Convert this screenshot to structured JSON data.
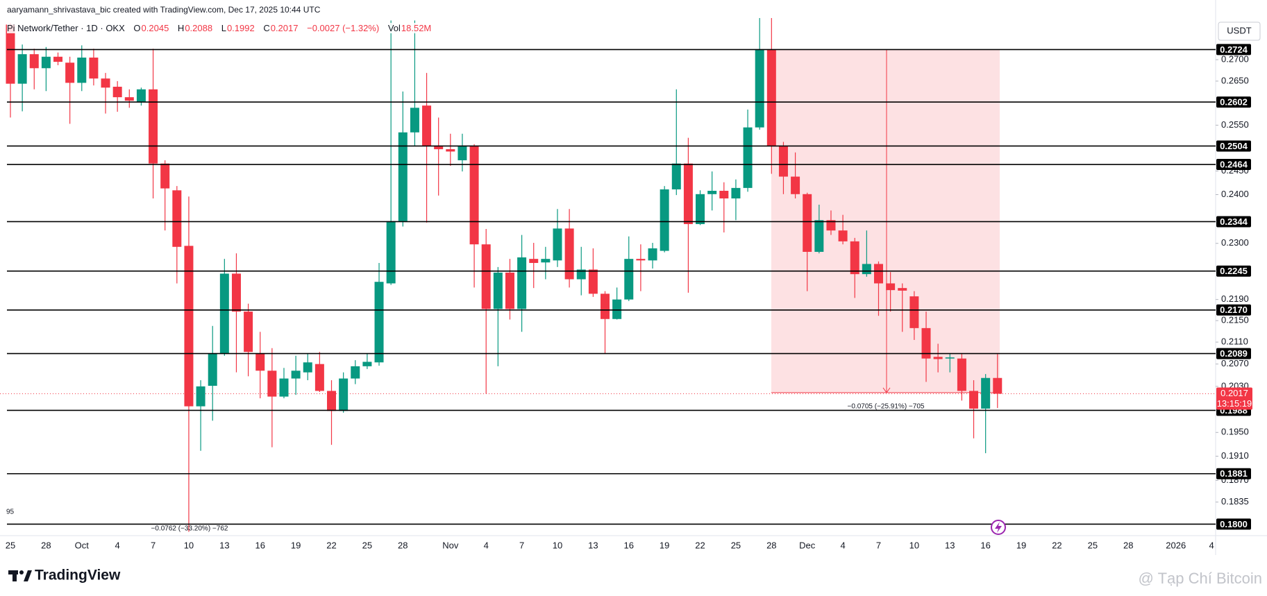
{
  "header": {
    "credit": "aaryamann_shrivastava_bic created with TradingView.com, Dec 17, 2025 10:44 UTC"
  },
  "chart_data": {
    "type": "candlestick",
    "legend": {
      "symbol": "Pi Network/Tether · 1D · OKX",
      "o_label": "O",
      "o": 0.2045,
      "h_label": "H",
      "h": 0.2088,
      "l_label": "L",
      "l": 0.1992,
      "c_label": "C",
      "c": 0.2017,
      "change": "−0.0027 (−1.32%)",
      "vol_label": "Vol",
      "vol": "18.52M"
    },
    "currency": "USDT",
    "categories": [
      "25",
      null,
      null,
      "28",
      null,
      null,
      "Oct",
      null,
      null,
      "4",
      null,
      null,
      "7",
      null,
      null,
      "10",
      null,
      null,
      "13",
      null,
      null,
      "16",
      null,
      null,
      "19",
      null,
      null,
      "22",
      null,
      null,
      "25",
      null,
      null,
      "28",
      null,
      null,
      null,
      "Nov",
      null,
      null,
      "4",
      null,
      null,
      "7",
      null,
      null,
      "10",
      null,
      null,
      "13",
      null,
      null,
      "16",
      null,
      null,
      "19",
      null,
      null,
      "22",
      null,
      null,
      "25",
      null,
      null,
      "28",
      null,
      null,
      "Dec",
      null,
      null,
      "4",
      null,
      null,
      "7",
      null,
      null,
      "10",
      null,
      null,
      "13",
      null,
      null,
      "16",
      null,
      null,
      "19",
      null,
      null,
      "22",
      null,
      null,
      "25",
      null,
      null,
      "28",
      null,
      null,
      null,
      "2026",
      null,
      null,
      "4"
    ],
    "open": [
      0.2784,
      0.2644,
      0.2713,
      0.268,
      0.2707,
      0.2693,
      0.2646,
      0.2705,
      0.2656,
      0.2637,
      0.2613,
      0.2603,
      0.2631,
      0.2466,
      0.2409,
      0.2295,
      0.1995,
      0.2031,
      0.2089,
      0.224,
      0.2167,
      0.2089,
      0.2058,
      0.2012,
      0.2044,
      0.2055,
      0.207,
      0.2022,
      0.1987,
      0.2044,
      0.2066,
      0.2073,
      0.2221,
      0.2345,
      0.2534,
      0.2594,
      0.2504,
      0.2497,
      0.2473,
      0.2504,
      0.2298,
      0.2172,
      0.2242,
      0.2172,
      0.2269,
      0.2262,
      0.2266,
      0.233,
      0.2229,
      0.2248,
      0.2201,
      0.2153,
      0.219,
      0.2269,
      0.2266,
      0.2285,
      0.2411,
      0.2466,
      0.2339,
      0.2401,
      0.2408,
      0.2392,
      0.2414,
      0.2545,
      0.2724,
      0.2504,
      0.2438,
      0.2401,
      0.2283,
      0.2347,
      0.2326,
      0.2304,
      0.2239,
      0.2259,
      0.2221,
      0.2212,
      0.2196,
      0.2136,
      0.2083,
      0.208,
      0.208,
      0.2022,
      0.1991,
      0.2045,
      null,
      null,
      null,
      null,
      null,
      null,
      null,
      null,
      null,
      null,
      null,
      null,
      null,
      null,
      null,
      null,
      null,
      null
    ],
    "high": [
      0.2788,
      0.2736,
      0.2726,
      0.273,
      0.2717,
      0.2707,
      0.2734,
      0.2726,
      0.2669,
      0.265,
      0.2631,
      0.2635,
      0.2726,
      0.2473,
      0.2418,
      0.2396,
      0.2041,
      0.214,
      0.2269,
      0.228,
      0.2182,
      0.2129,
      0.2099,
      0.2063,
      0.2085,
      0.2089,
      0.2092,
      0.2041,
      0.2055,
      0.2077,
      0.2089,
      0.2261,
      0.2794,
      0.2626,
      0.2794,
      0.2669,
      0.2567,
      0.2531,
      0.2531,
      0.2508,
      0.2329,
      0.2253,
      0.2269,
      0.2317,
      0.2301,
      0.2293,
      0.237,
      0.237,
      0.2293,
      0.229,
      0.2206,
      0.2213,
      0.2314,
      0.2298,
      0.2301,
      0.2418,
      0.2631,
      0.2522,
      0.2409,
      0.2449,
      0.2426,
      0.2432,
      0.2585,
      0.2804,
      0.2804,
      0.2513,
      0.249,
      0.2404,
      0.2379,
      0.2367,
      0.2358,
      0.2311,
      0.2326,
      0.2264,
      0.2243,
      0.2221,
      0.2206,
      0.2167,
      0.2107,
      0.2089,
      0.2089,
      0.2041,
      0.2052,
      0.2088,
      null,
      null,
      null,
      null,
      null,
      null,
      null,
      null,
      null,
      null,
      null,
      null,
      null,
      null,
      null,
      null,
      null,
      null
    ],
    "low": [
      0.2567,
      0.2581,
      0.2631,
      0.2627,
      0.2687,
      0.2553,
      0.2627,
      0.264,
      0.2576,
      0.258,
      0.2589,
      0.2594,
      0.2392,
      0.2326,
      0.2221,
      0.1788,
      0.1919,
      0.197,
      0.2085,
      0.2055,
      0.2048,
      0.2009,
      0.1925,
      0.2009,
      0.2015,
      0.2041,
      0.202,
      0.1929,
      0.1984,
      0.2034,
      0.2061,
      0.2067,
      0.2218,
      0.2334,
      0.2504,
      0.2342,
      0.2398,
      0.2461,
      0.2449,
      0.2213,
      0.2017,
      0.2066,
      0.2152,
      0.2129,
      0.2212,
      0.2229,
      0.2253,
      0.2213,
      0.2198,
      0.2195,
      0.2089,
      0.2152,
      0.2187,
      0.2206,
      0.225,
      0.2282,
      0.2399,
      0.2203,
      0.2337,
      0.2367,
      0.2322,
      0.2347,
      0.2406,
      0.254,
      0.2444,
      0.2401,
      0.2392,
      0.2206,
      0.228,
      0.2317,
      0.2298,
      0.2193,
      0.2234,
      0.2159,
      0.2167,
      0.2129,
      0.2114,
      0.2038,
      0.2055,
      0.2055,
      0.2005,
      0.194,
      0.1915,
      0.1992,
      null,
      null,
      null,
      null,
      null,
      null,
      null,
      null,
      null,
      null,
      null,
      null,
      null,
      null,
      null,
      null,
      null,
      null
    ],
    "close": [
      0.2644,
      0.2713,
      0.268,
      0.2707,
      0.2695,
      0.2646,
      0.2705,
      0.2656,
      0.2635,
      0.2613,
      0.2605,
      0.2631,
      0.2466,
      0.2413,
      0.2293,
      0.1995,
      0.203,
      0.2089,
      0.224,
      0.2167,
      0.2092,
      0.2058,
      0.2012,
      0.2044,
      0.2058,
      0.2073,
      0.2022,
      0.1987,
      0.2044,
      0.2066,
      0.2074,
      0.2224,
      0.2345,
      0.2534,
      0.2589,
      0.2504,
      0.2497,
      0.2492,
      0.2504,
      0.2298,
      0.2172,
      0.2242,
      0.2172,
      0.2272,
      0.2261,
      0.2269,
      0.233,
      0.2229,
      0.2248,
      0.2201,
      0.2153,
      0.219,
      0.2269,
      0.2266,
      0.229,
      0.2411,
      0.2466,
      0.2339,
      0.2401,
      0.2408,
      0.2392,
      0.2414,
      0.2545,
      0.2724,
      0.2504,
      0.2438,
      0.2401,
      0.2283,
      0.2347,
      0.2326,
      0.2304,
      0.2239,
      0.2259,
      0.2221,
      0.2208,
      0.2207,
      0.2136,
      0.208,
      0.2079,
      0.2082,
      0.2022,
      0.1991,
      0.2045,
      0.2017,
      null,
      null,
      null,
      null,
      null,
      null,
      null,
      null,
      null,
      null,
      null,
      null,
      null,
      null,
      null,
      null,
      null,
      null
    ],
    "up_color": "#089981",
    "down_color": "#f23645",
    "log_scale": true,
    "grid": false,
    "ylim": [
      0.1782,
      0.28
    ],
    "yticks": [
      {
        "value": 0.27,
        "label": "0.2700"
      },
      {
        "value": 0.265,
        "label": "0.2650"
      },
      {
        "value": 0.255,
        "label": "0.2550"
      },
      {
        "value": 0.245,
        "label": "0.2450"
      },
      {
        "value": 0.24,
        "label": "0.2400"
      },
      {
        "value": 0.23,
        "label": "0.2300"
      },
      {
        "value": 0.219,
        "label": "0.2190"
      },
      {
        "value": 0.215,
        "label": "0.2150"
      },
      {
        "value": 0.211,
        "label": "0.2110"
      },
      {
        "value": 0.207,
        "label": "0.2070"
      },
      {
        "value": 0.203,
        "label": "0.2030"
      },
      {
        "value": 0.195,
        "label": "0.1950"
      },
      {
        "value": 0.191,
        "label": "0.1910"
      },
      {
        "value": 0.187,
        "label": "0.1870"
      },
      {
        "value": 0.1835,
        "label": "0.1835"
      }
    ],
    "levels": [
      {
        "value": 0.2724,
        "label": "0.2724"
      },
      {
        "value": 0.2602,
        "label": "0.2602"
      },
      {
        "value": 0.2504,
        "label": "0.2504"
      },
      {
        "value": 0.2464,
        "label": "0.2464"
      },
      {
        "value": 0.2344,
        "label": "0.2344"
      },
      {
        "value": 0.2245,
        "label": "0.2245"
      },
      {
        "value": 0.217,
        "label": "0.2170"
      },
      {
        "value": 0.2089,
        "label": "0.2089"
      },
      {
        "value": 0.1988,
        "label": "0.1988"
      },
      {
        "value": 0.1881,
        "label": "0.1881"
      },
      {
        "value": 0.18,
        "label": "0.1800"
      }
    ],
    "level_color": "#000000",
    "last_price": {
      "value": 0.2017,
      "label": "0.2017",
      "countdown": "13:15:19"
    },
    "measure": {
      "from": 0.2724,
      "to": 0.2019,
      "label": "−0.0705 (−25.91%) −705"
    },
    "annotations": [
      "−0.0762 (−33.20%) −762",
      "95"
    ]
  },
  "footer": {
    "logo": "TradingView",
    "watermark": "@ Tạp Chí Bitcoin"
  }
}
